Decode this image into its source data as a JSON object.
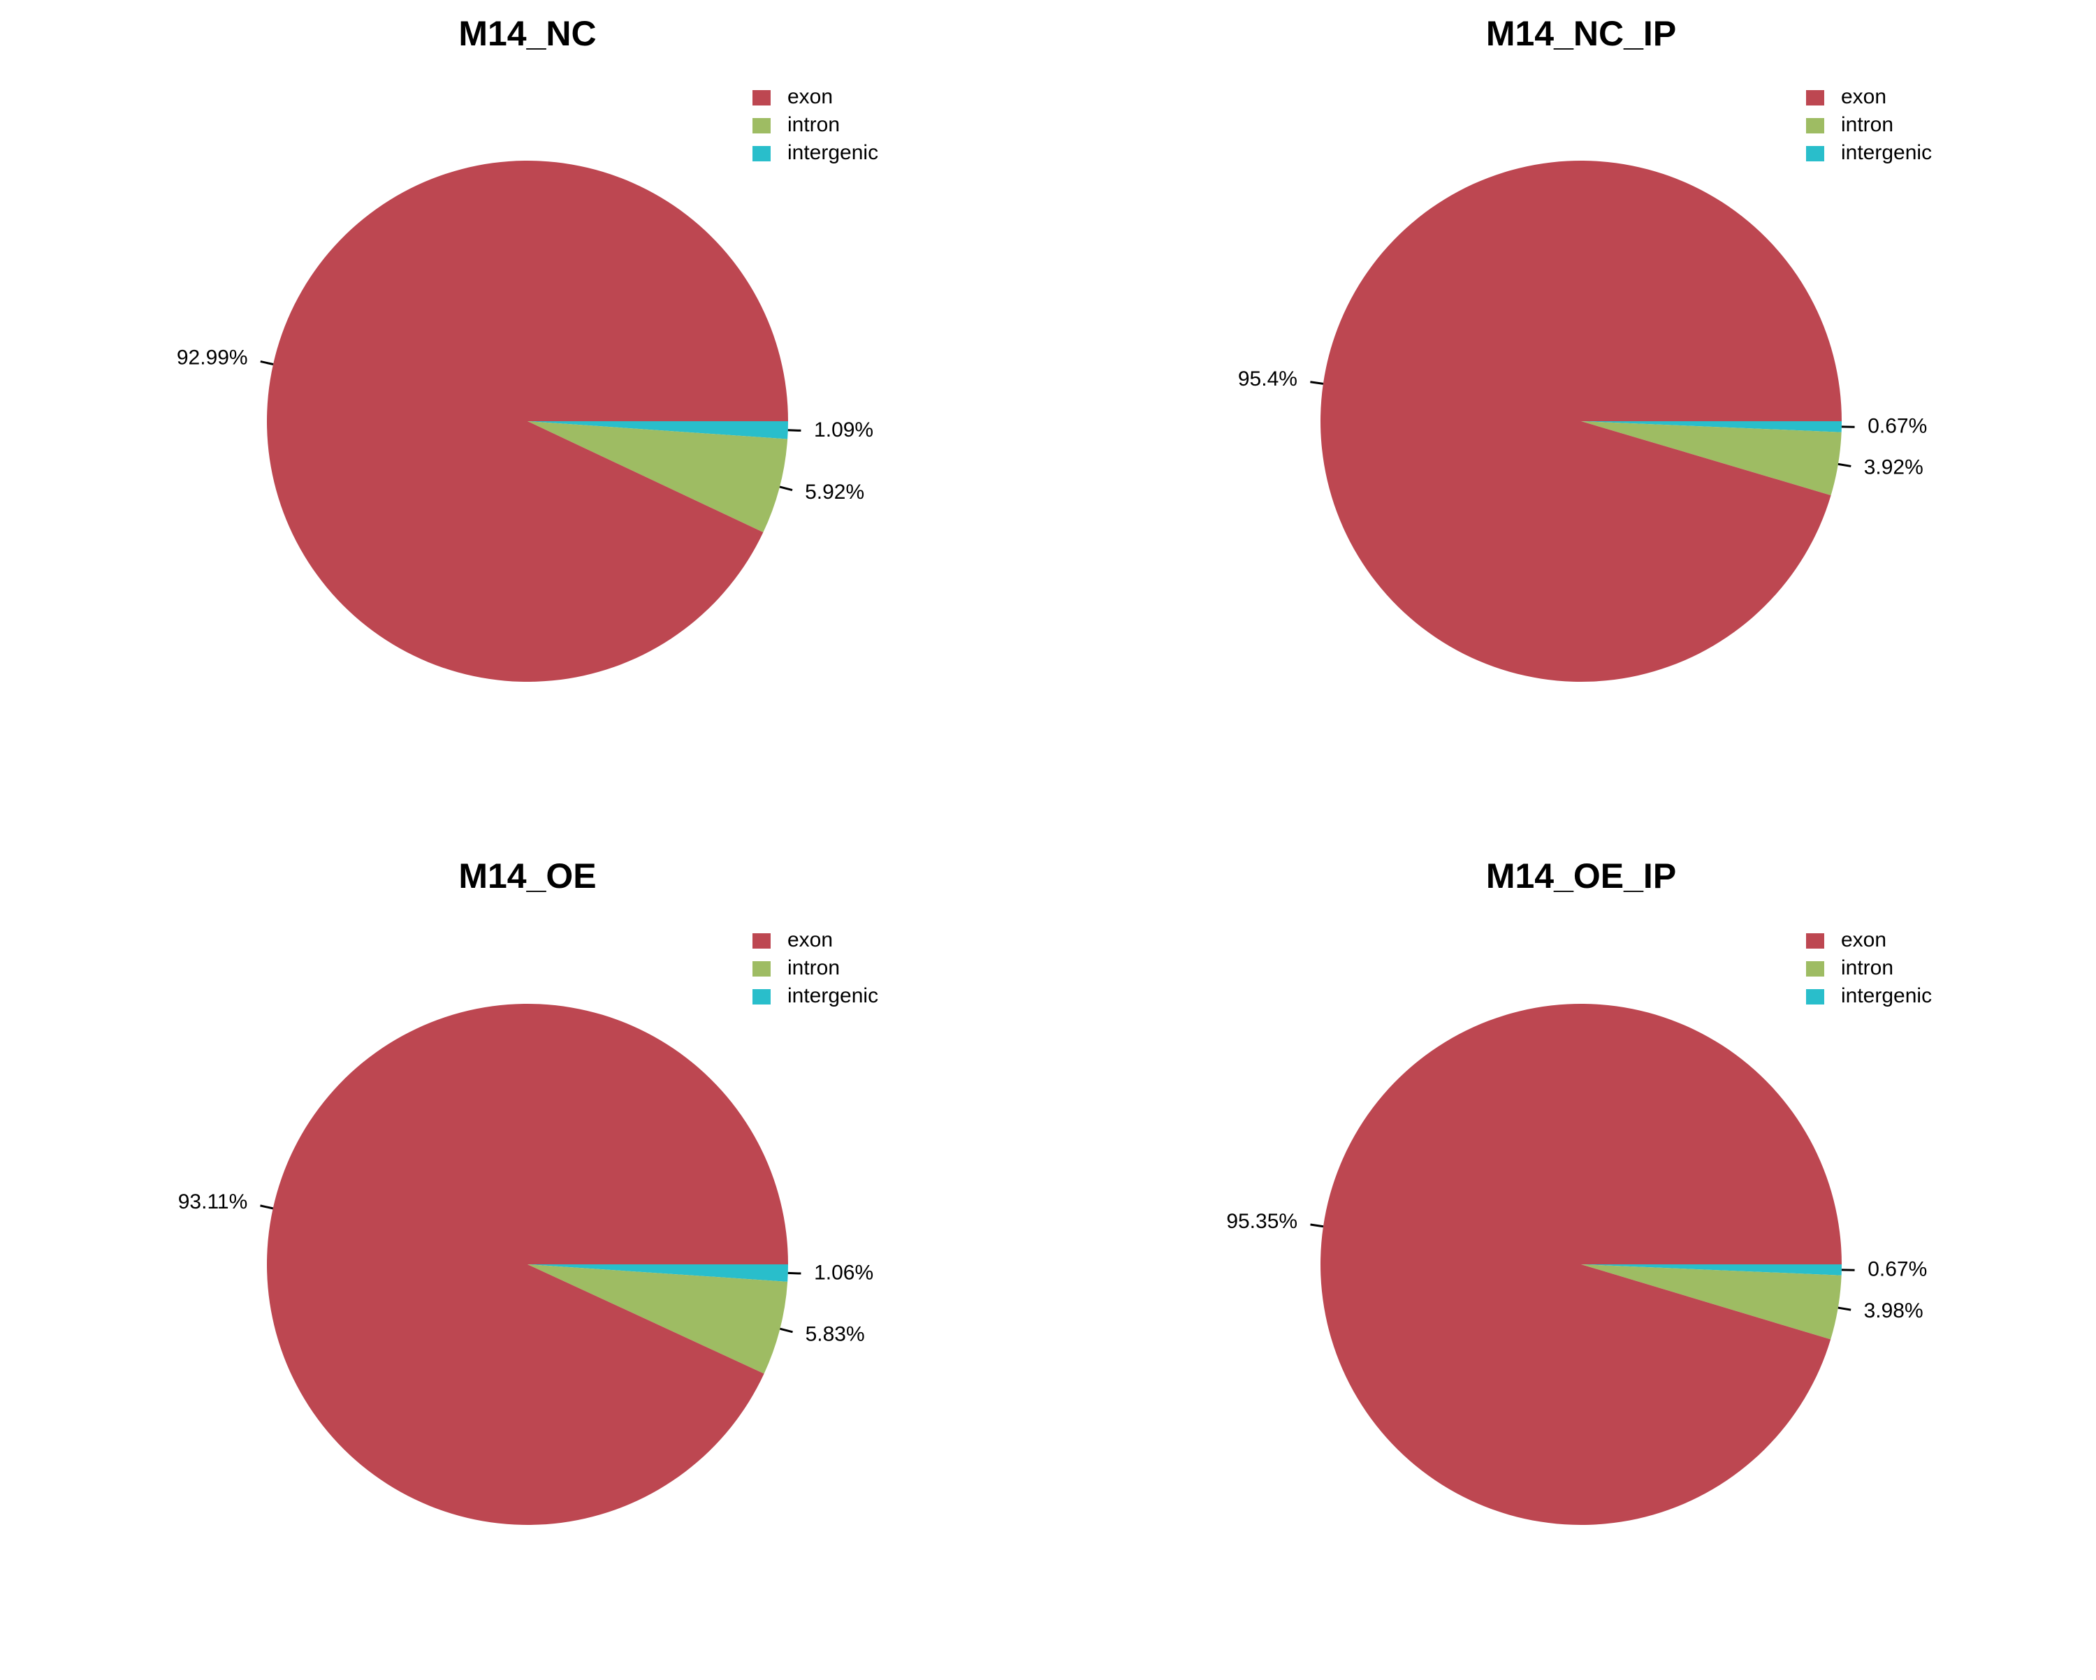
{
  "chart_data": [
    {
      "type": "pie",
      "title": "M14_NC",
      "categories": [
        "exon",
        "intron",
        "intergenic"
      ],
      "values": [
        92.99,
        5.92,
        1.09
      ],
      "labels": [
        "92.99%",
        "5.92%",
        "1.09%"
      ],
      "colors": [
        "#BD4751",
        "#9EBC63",
        "#29BECB"
      ],
      "legend": [
        "exon",
        "intron",
        "intergenic"
      ],
      "legend_position": "top-right"
    },
    {
      "type": "pie",
      "title": "M14_NC_IP",
      "categories": [
        "exon",
        "intron",
        "intergenic"
      ],
      "values": [
        95.4,
        3.92,
        0.67
      ],
      "labels": [
        "95.4%",
        "3.92%",
        "0.67%"
      ],
      "colors": [
        "#BD4751",
        "#9EBC63",
        "#29BECB"
      ],
      "legend": [
        "exon",
        "intron",
        "intergenic"
      ],
      "legend_position": "top-right"
    },
    {
      "type": "pie",
      "title": "M14_OE",
      "categories": [
        "exon",
        "intron",
        "intergenic"
      ],
      "values": [
        93.11,
        5.83,
        1.06
      ],
      "labels": [
        "93.11%",
        "5.83%",
        "1.06%"
      ],
      "colors": [
        "#BD4751",
        "#9EBC63",
        "#29BECB"
      ],
      "legend": [
        "exon",
        "intron",
        "intergenic"
      ],
      "legend_position": "top-right"
    },
    {
      "type": "pie",
      "title": "M14_OE_IP",
      "categories": [
        "exon",
        "intron",
        "intergenic"
      ],
      "values": [
        95.35,
        3.98,
        0.67
      ],
      "labels": [
        "95.35%",
        "3.98%",
        "0.67%"
      ],
      "colors": [
        "#BD4751",
        "#9EBC63",
        "#29BECB"
      ],
      "legend": [
        "exon",
        "intron",
        "intergenic"
      ],
      "legend_position": "top-right"
    }
  ]
}
